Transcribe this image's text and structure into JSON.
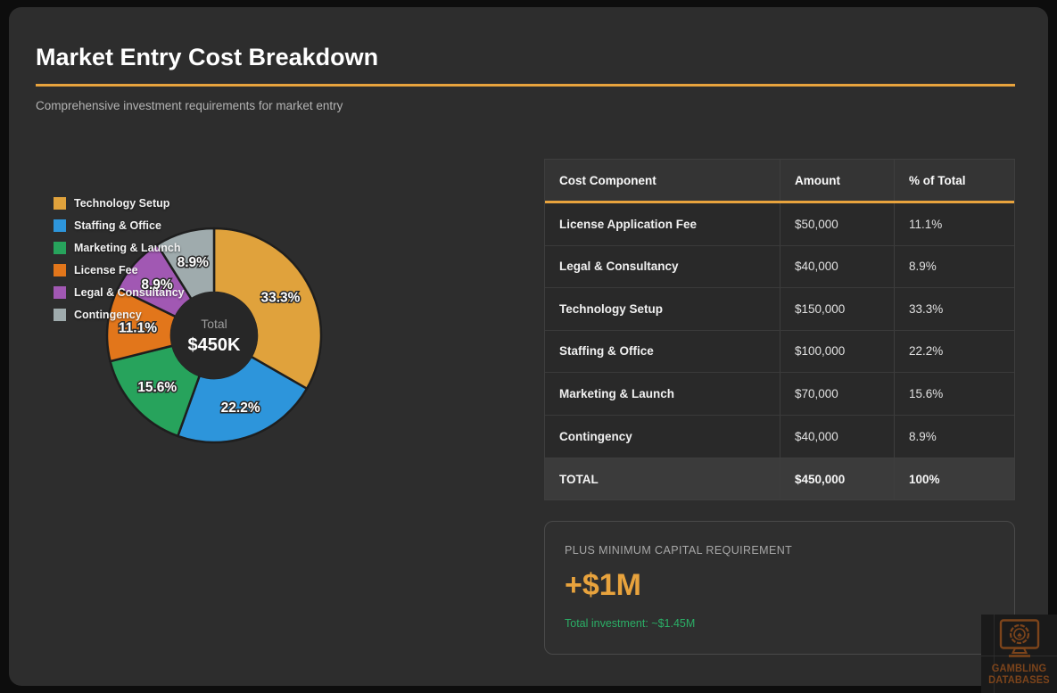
{
  "header": {
    "title": "Market Entry Cost Breakdown",
    "subtitle": "Comprehensive investment requirements for market entry"
  },
  "colors": {
    "accent": "#E8A33D",
    "page_bg": "#0D0D0D",
    "card_bg": "#2D2D2D",
    "note_green": "#2BAE66"
  },
  "chart_data": {
    "type": "pie",
    "subtype": "donut",
    "direction": "clockwise",
    "start_angle_deg": 0,
    "legend_position": "top-left",
    "center_label": "Total",
    "center_value": "$450K",
    "segments": [
      {
        "label": "Technology Setup",
        "value": 150000,
        "pct": 33.3,
        "pct_label": "33.3%",
        "color": "#E0A23C"
      },
      {
        "label": "Staffing & Office",
        "value": 100000,
        "pct": 22.2,
        "pct_label": "22.2%",
        "color": "#2D95DB"
      },
      {
        "label": "Marketing & Launch",
        "value": 70000,
        "pct": 15.6,
        "pct_label": "15.6%",
        "color": "#27A35C"
      },
      {
        "label": "License Fee",
        "value": 50000,
        "pct": 11.1,
        "pct_label": "11.1%",
        "color": "#E2761B"
      },
      {
        "label": "Legal & Consultancy",
        "value": 40000,
        "pct": 8.9,
        "pct_label": "8.9%",
        "color": "#A158B3"
      },
      {
        "label": "Contingency",
        "value": 40000,
        "pct": 8.9,
        "pct_label": "8.9%",
        "color": "#9FABAD"
      }
    ]
  },
  "table": {
    "columns": [
      "Cost Component",
      "Amount",
      "% of Total"
    ],
    "rows": [
      [
        "License Application Fee",
        "$50,000",
        "11.1%"
      ],
      [
        "Legal & Consultancy",
        "$40,000",
        "8.9%"
      ],
      [
        "Technology Setup",
        "$150,000",
        "33.3%"
      ],
      [
        "Staffing & Office",
        "$100,000",
        "22.2%"
      ],
      [
        "Marketing & Launch",
        "$70,000",
        "15.6%"
      ],
      [
        "Contingency",
        "$40,000",
        "8.9%"
      ]
    ],
    "total_row": [
      "TOTAL",
      "$450,000",
      "100%"
    ]
  },
  "capital_box": {
    "label": "PLUS MINIMUM CAPITAL REQUIREMENT",
    "value": "+$1M",
    "note": "Total investment: ~$1.45M"
  },
  "watermark": {
    "line1": "GAMBLING",
    "line2": "DATABASES"
  }
}
